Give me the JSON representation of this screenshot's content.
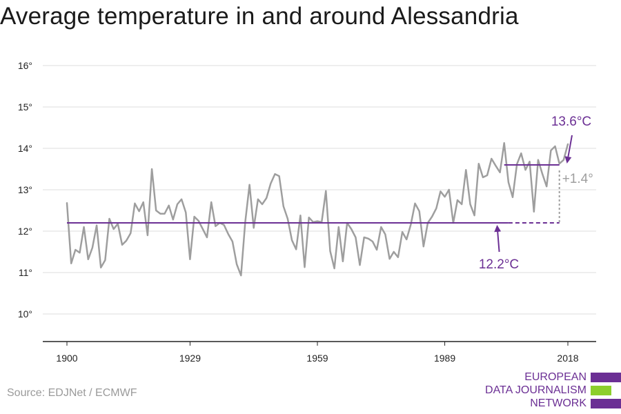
{
  "title": "Average temperature in and around Alessandria",
  "source": "Source: EDJNet / ECMWF",
  "logo": {
    "lines": [
      "EUROPEAN",
      "DATA JOURNALISM",
      "NETWORK"
    ],
    "colors": [
      "#6b2f94",
      "#8ccf2c",
      "#6b2f94"
    ]
  },
  "colors": {
    "series": "#9e9e9e",
    "baseline": "#6b2f94",
    "annotation": "#6b2f94",
    "difference": "#9e9e9e",
    "grid": "#dddddd",
    "axis": "#222222"
  },
  "chart_data": {
    "type": "line",
    "title": "Average temperature in and around Alessandria",
    "xlabel": "",
    "ylabel": "",
    "xlim": [
      1900,
      2018
    ],
    "ylim": [
      10,
      16
    ],
    "xticks": [
      1900,
      1929,
      1959,
      1989,
      2018
    ],
    "xtick_labels": [
      "1900",
      "1929",
      "1959",
      "1989",
      "2018"
    ],
    "yticks": [
      10,
      11,
      12,
      13,
      14,
      15,
      16
    ],
    "ytick_labels": [
      "10°",
      "11°",
      "12°",
      "13°",
      "14°",
      "15°",
      "16°"
    ],
    "grid": true,
    "series": [
      {
        "x": [
          1900,
          1901,
          1902,
          1903,
          1904,
          1905,
          1906,
          1907,
          1908,
          1909,
          1910,
          1911,
          1912,
          1913,
          1914,
          1915,
          1916,
          1917,
          1918,
          1919,
          1920,
          1921,
          1922,
          1923,
          1924,
          1925,
          1926,
          1927,
          1928,
          1929,
          1930,
          1931,
          1932,
          1933,
          1934,
          1935,
          1936,
          1937,
          1938,
          1939,
          1940,
          1941,
          1942,
          1943,
          1944,
          1945,
          1946,
          1947,
          1948,
          1949,
          1950,
          1951,
          1952,
          1953,
          1954,
          1955,
          1956,
          1957,
          1958,
          1959,
          1960,
          1961,
          1962,
          1963,
          1964,
          1965,
          1966,
          1967,
          1968,
          1969,
          1970,
          1971,
          1972,
          1973,
          1974,
          1975,
          1976,
          1977,
          1978,
          1979,
          1980,
          1981,
          1982,
          1983,
          1984,
          1985,
          1986,
          1987,
          1988,
          1989,
          1990,
          1991,
          1992,
          1993,
          1994,
          1995,
          1996,
          1997,
          1998,
          1999,
          2000,
          2001,
          2002,
          2003,
          2004,
          2005,
          2006,
          2007,
          2008,
          2009,
          2010,
          2011,
          2012,
          2013,
          2014,
          2015,
          2016,
          2017,
          2018
        ],
        "values": [
          12.68,
          11.22,
          11.55,
          11.48,
          12.1,
          11.32,
          11.6,
          12.14,
          11.12,
          11.3,
          12.3,
          12.05,
          12.18,
          11.67,
          11.77,
          11.95,
          12.67,
          12.48,
          12.7,
          11.9,
          13.5,
          12.5,
          12.42,
          12.42,
          12.62,
          12.28,
          12.65,
          12.77,
          12.45,
          11.32,
          12.35,
          12.25,
          12.05,
          11.85,
          12.7,
          12.12,
          12.2,
          12.15,
          11.93,
          11.75,
          11.2,
          10.93,
          12.22,
          13.12,
          12.08,
          12.77,
          12.65,
          12.8,
          13.15,
          13.38,
          13.33,
          12.6,
          12.3,
          11.78,
          11.56,
          12.38,
          11.13,
          12.33,
          12.22,
          12.24,
          12.22,
          12.97,
          11.52,
          11.1,
          12.1,
          11.27,
          12.2,
          12.05,
          11.85,
          11.18,
          11.85,
          11.82,
          11.75,
          11.55,
          12.1,
          11.92,
          11.33,
          11.5,
          11.37,
          11.98,
          11.8,
          12.16,
          12.67,
          12.48,
          11.63,
          12.2,
          12.35,
          12.55,
          12.96,
          12.83,
          13.0,
          12.2,
          12.75,
          12.65,
          13.48,
          12.65,
          12.38,
          13.63,
          13.3,
          13.35,
          13.75,
          13.58,
          13.42,
          14.13,
          13.18,
          12.82,
          13.62,
          13.88,
          13.48,
          13.68,
          12.47,
          13.72,
          13.38,
          13.08,
          13.95,
          14.05,
          13.63,
          13.72,
          14.1
        ]
      }
    ],
    "reference_lines": [
      {
        "label": "12.2°C",
        "value": 12.2,
        "x_range": [
          1900,
          2004
        ],
        "extension_x_range": [
          2004,
          2016
        ]
      },
      {
        "label": "13.6°C",
        "value": 13.6,
        "x_range": [
          2003,
          2016
        ]
      }
    ],
    "difference_annotation": {
      "label": "+1.4°",
      "x": 2016,
      "from": 12.2,
      "to": 13.6
    }
  }
}
